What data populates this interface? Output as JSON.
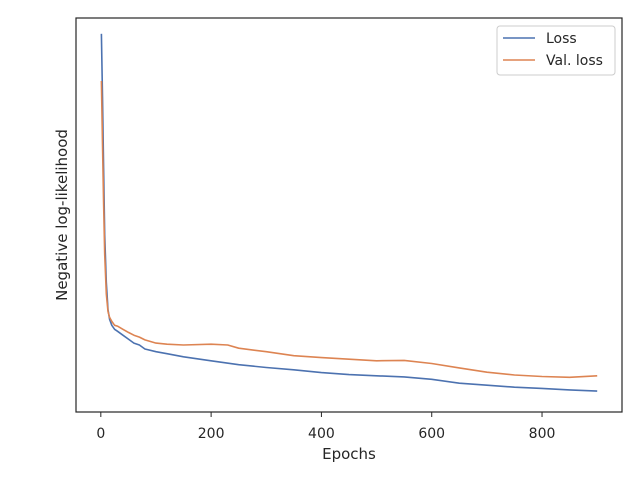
{
  "chart_data": {
    "type": "line",
    "title": "",
    "xlabel": "Epochs",
    "ylabel": "Negative log-likelihood",
    "xlim": [
      -45,
      945
    ],
    "ylim": [
      0,
      100
    ],
    "x_ticks": [
      0,
      200,
      400,
      600,
      800
    ],
    "y_ticks_visible": false,
    "grid": false,
    "legend_placement": "top-right",
    "series": [
      {
        "name": "Loss",
        "color": "#4c72b0",
        "x": [
          1,
          3,
          5,
          7,
          10,
          13,
          16,
          20,
          25,
          30,
          40,
          50,
          60,
          70,
          80,
          100,
          120,
          150,
          200,
          250,
          300,
          350,
          400,
          450,
          500,
          550,
          600,
          650,
          700,
          750,
          800,
          850,
          900
        ],
        "values": [
          96,
          80,
          62,
          45,
          33,
          26,
          23.5,
          22,
          21,
          20.5,
          19.5,
          18.5,
          17.5,
          17,
          16,
          15.3,
          14.8,
          14,
          13,
          12,
          11.3,
          10.7,
          10,
          9.5,
          9.2,
          8.9,
          8.3,
          7.3,
          6.8,
          6.3,
          6.0,
          5.6,
          5.3
        ]
      },
      {
        "name": "Val. loss",
        "color": "#dd8452",
        "x": [
          1,
          3,
          5,
          7,
          10,
          13,
          16,
          20,
          25,
          30,
          40,
          50,
          60,
          70,
          80,
          100,
          120,
          150,
          200,
          230,
          250,
          300,
          350,
          400,
          450,
          500,
          550,
          600,
          650,
          700,
          750,
          800,
          850,
          900
        ],
        "values": [
          84,
          68,
          53,
          40,
          30,
          25.5,
          24,
          23,
          22,
          21.8,
          21,
          20.2,
          19.5,
          19,
          18.3,
          17.5,
          17.2,
          17,
          17.2,
          17,
          16.2,
          15.3,
          14.3,
          13.8,
          13.4,
          13,
          13.1,
          12.3,
          11.2,
          10.1,
          9.4,
          9.0,
          8.8,
          9.2
        ]
      }
    ]
  }
}
